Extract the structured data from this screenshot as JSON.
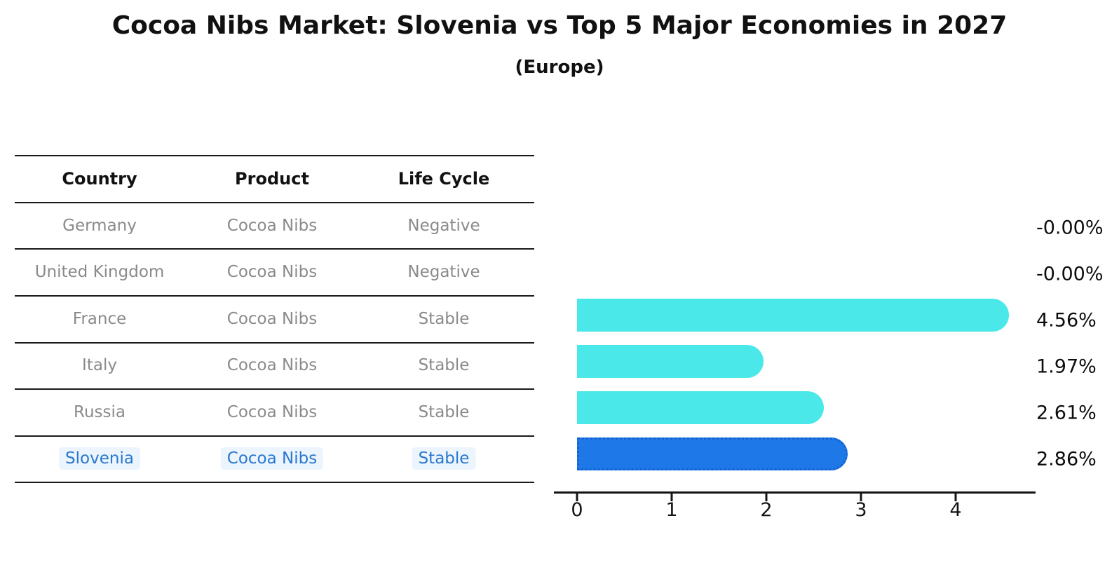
{
  "title": "Cocoa Nibs Market: Slovenia vs Top 5 Major Economies in 2027",
  "subtitle": "(Europe)",
  "table": {
    "headers": [
      "Country",
      "Product",
      "Life Cycle"
    ],
    "rows": [
      {
        "country": "Germany",
        "product": "Cocoa Nibs",
        "life_cycle": "Negative",
        "highlight": false
      },
      {
        "country": "United Kingdom",
        "product": "Cocoa Nibs",
        "life_cycle": "Negative",
        "highlight": false
      },
      {
        "country": "France",
        "product": "Cocoa Nibs",
        "life_cycle": "Stable",
        "highlight": false
      },
      {
        "country": "Italy",
        "product": "Cocoa Nibs",
        "life_cycle": "Stable",
        "highlight": false
      },
      {
        "country": "Russia",
        "product": "Cocoa Nibs",
        "life_cycle": "Stable",
        "highlight": false
      },
      {
        "country": "Slovenia",
        "product": "Cocoa Nibs",
        "life_cycle": "Stable",
        "highlight": true
      }
    ]
  },
  "chart_data": {
    "type": "bar",
    "orientation": "horizontal",
    "title": "Cocoa Nibs Market: Slovenia vs Top 5 Major Economies in 2027",
    "subtitle": "(Europe)",
    "categories": [
      "Germany",
      "United Kingdom",
      "France",
      "Italy",
      "Russia",
      "Slovenia"
    ],
    "values": [
      -0.0,
      -0.0,
      4.56,
      1.97,
      2.61,
      2.86
    ],
    "value_labels": [
      "-0.00%",
      "-0.00%",
      "4.56%",
      "1.97%",
      "2.61%",
      "2.86%"
    ],
    "x_ticks": [
      0,
      1,
      2,
      3,
      4
    ],
    "xlim": [
      -0.25,
      4.85
    ],
    "xlabel": "",
    "ylabel": "",
    "grid": false,
    "legend_position": "none",
    "highlight_index": 5
  },
  "colors": {
    "bar": "#4ae8e8",
    "accent-bar": "#1e78e8",
    "accent-border": "#1563d2",
    "accent-text": "#2878d0",
    "muted": "#8a8a8a",
    "hl-bg": "rgba(70,150,240,0.10)"
  }
}
